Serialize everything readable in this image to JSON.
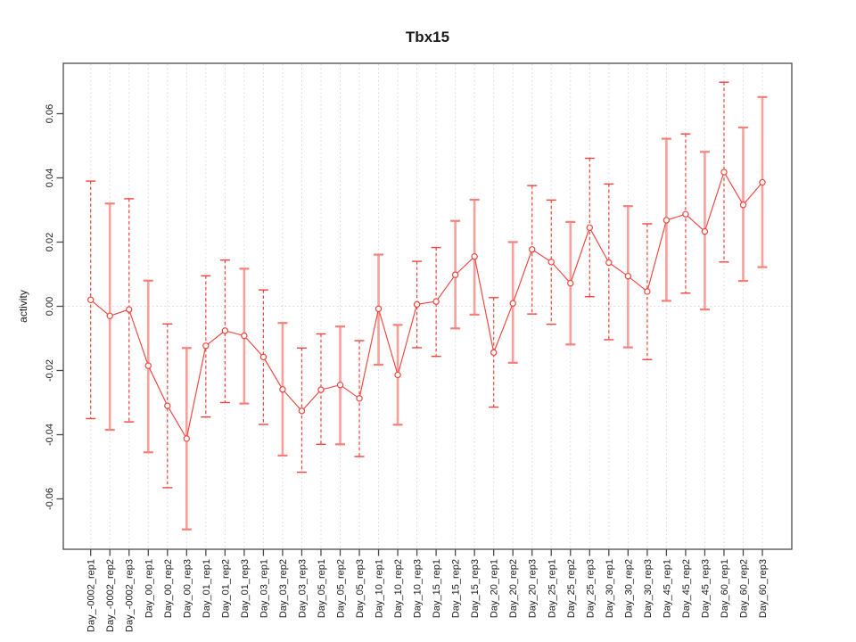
{
  "title": "Tbx15",
  "ylabel": "activity",
  "xlabel": "",
  "colors": {
    "series_red": "#ef453e",
    "errorbar_pink": "#f7a09c",
    "errorbar_cap_pink": "#f67f7a",
    "grid_gray": "#d8d8d8",
    "axis_gray": "#4a4a4a",
    "background": "#ffffff"
  },
  "chart_data": {
    "type": "scatter",
    "subtype": "points-with-error-bars-connected-line",
    "title": "Tbx15",
    "xlabel": "",
    "ylabel": "activity",
    "legend": "none",
    "grid": "vertical dotted line at every category; horizontal dotted line at y=0",
    "ylim": [
      -0.0757,
      0.0757
    ],
    "ytick_values": [
      -0.06,
      -0.04,
      -0.02,
      0.0,
      0.02,
      0.04,
      0.06
    ],
    "ytick_labels": [
      "-0.06",
      "-0.04",
      "-0.02",
      "0.00",
      "0.02",
      "0.04",
      "0.06"
    ],
    "categories": [
      "Day_-0002_rep1",
      "Day_-0002_rep2",
      "Day_-0002_rep3",
      "Day_00_rep1",
      "Day_00_rep2",
      "Day_00_rep3",
      "Day_01_rep1",
      "Day_01_rep2",
      "Day_01_rep3",
      "Day_03_rep1",
      "Day_03_rep2",
      "Day_03_rep3",
      "Day_05_rep1",
      "Day_05_rep2",
      "Day_05_rep3",
      "Day_10_rep1",
      "Day_10_rep2",
      "Day_10_rep3",
      "Day_15_rep1",
      "Day_15_rep2",
      "Day_15_rep3",
      "Day_20_rep1",
      "Day_20_rep2",
      "Day_20_rep3",
      "Day_25_rep1",
      "Day_25_rep2",
      "Day_25_rep3",
      "Day_30_rep1",
      "Day_30_rep2",
      "Day_30_rep3",
      "Day_45_rep1",
      "Day_45_rep2",
      "Day_45_rep3",
      "Day_60_rep1",
      "Day_60_rep2",
      "Day_60_rep3"
    ],
    "series": [
      {
        "name": "activity",
        "marker": "open-circle",
        "line": "solid",
        "values": [
          0.002,
          -0.003,
          -0.001,
          -0.0185,
          -0.031,
          -0.0412,
          -0.0123,
          -0.0076,
          -0.0092,
          -0.0158,
          -0.0259,
          -0.0326,
          -0.026,
          -0.0245,
          -0.0287,
          -0.0008,
          -0.0214,
          0.0006,
          0.0015,
          0.0098,
          0.0155,
          -0.0144,
          0.0009,
          0.0177,
          0.0138,
          0.0072,
          0.0245,
          0.0136,
          0.0094,
          0.0046,
          0.0268,
          0.0287,
          0.0233,
          0.0418,
          0.0316,
          0.0386
        ],
        "err_low": [
          -0.035,
          -0.0385,
          -0.036,
          -0.0455,
          -0.0565,
          -0.0695,
          -0.0345,
          -0.03,
          -0.0303,
          -0.0368,
          -0.0465,
          -0.0517,
          -0.043,
          -0.043,
          -0.0468,
          -0.0182,
          -0.0369,
          -0.0129,
          -0.0156,
          -0.0069,
          -0.0026,
          -0.0314,
          -0.0176,
          -0.0024,
          -0.0056,
          -0.0119,
          0.003,
          -0.0104,
          -0.0128,
          -0.0166,
          0.0017,
          0.0041,
          -0.001,
          0.0138,
          0.0079,
          0.0122
        ],
        "err_high": [
          0.039,
          0.032,
          0.0335,
          0.008,
          -0.0055,
          -0.013,
          0.0095,
          0.0144,
          0.0117,
          0.0051,
          -0.0052,
          -0.013,
          -0.0086,
          -0.0063,
          -0.0107,
          0.0161,
          -0.0058,
          0.014,
          0.0183,
          0.0266,
          0.0332,
          0.0027,
          0.02,
          0.0376,
          0.0331,
          0.0263,
          0.0461,
          0.0381,
          0.0312,
          0.0257,
          0.0522,
          0.0537,
          0.0481,
          0.0698,
          0.0557,
          0.0652
        ],
        "bar_style": [
          "dashed",
          "solid",
          "dashed",
          "solid",
          "dashed",
          "solid",
          "dashed",
          "dashed",
          "solid",
          "dashed",
          "solid",
          "dashed",
          "dashed",
          "solid",
          "dashed",
          "solid",
          "solid",
          "dashed",
          "dashed",
          "solid",
          "solid",
          "dashed",
          "solid",
          "dashed",
          "dashed",
          "solid",
          "dashed",
          "dashed",
          "solid",
          "dashed",
          "solid",
          "dashed",
          "solid",
          "dashed",
          "solid",
          "solid"
        ]
      }
    ]
  }
}
